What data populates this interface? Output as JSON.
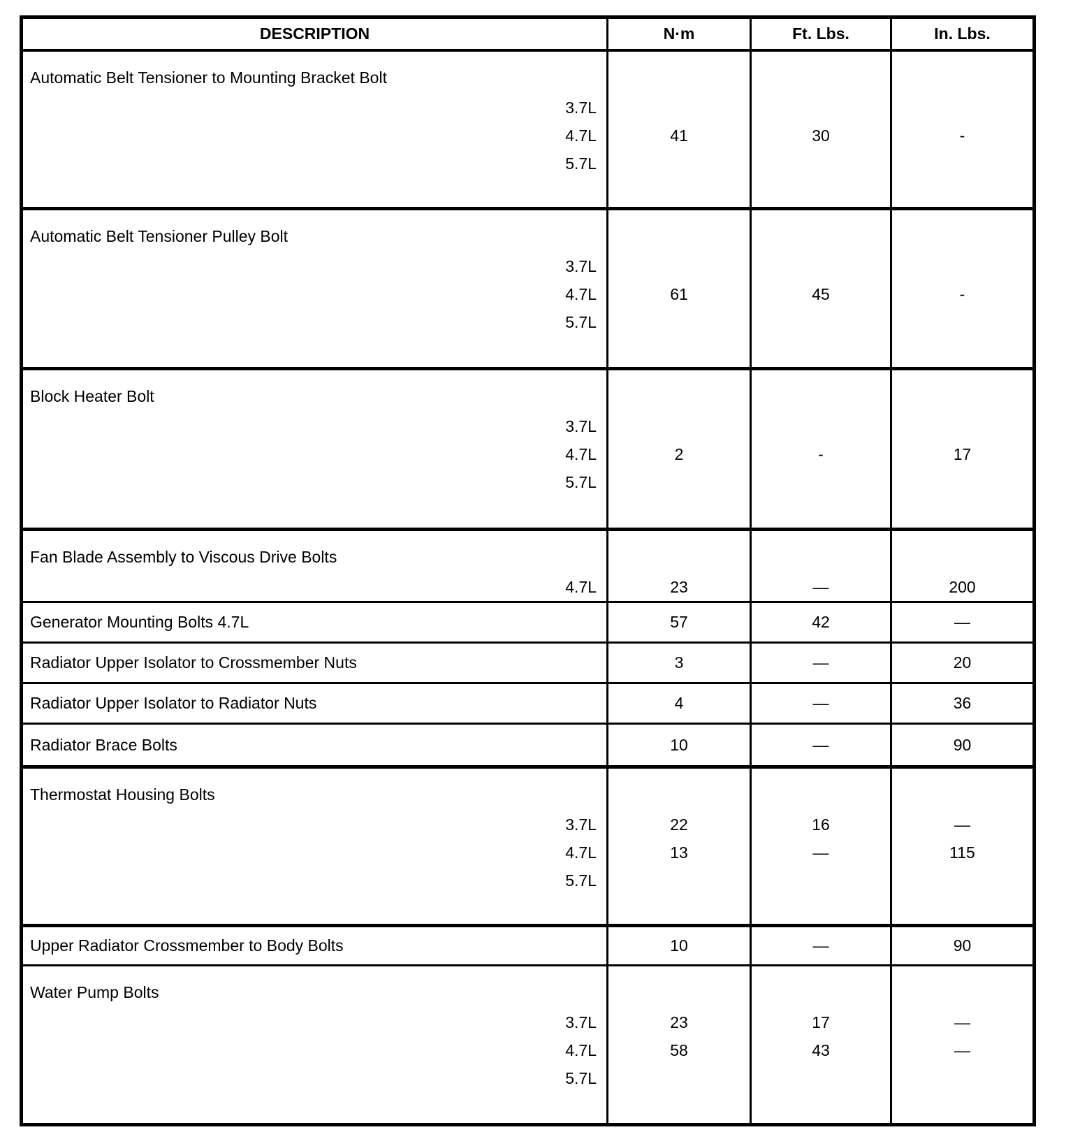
{
  "page": {
    "background_color": "#ffffff",
    "text_color": "#000000"
  },
  "table": {
    "columns": [
      "DESCRIPTION",
      "N·m",
      "Ft. Lbs.",
      "In. Lbs."
    ],
    "rows": [
      {
        "description": "Automatic Belt Tensioner to Mounting Bracket Bolt",
        "group_end": true,
        "lines": [
          {
            "engine": "3.7L",
            "nm": "",
            "ft_lbs": "",
            "in_lbs": ""
          },
          {
            "engine": "4.7L",
            "nm": "41",
            "ft_lbs": "30",
            "in_lbs": "-"
          },
          {
            "engine": "5.7L",
            "nm": "",
            "ft_lbs": "",
            "in_lbs": ""
          }
        ]
      },
      {
        "description": "Automatic Belt Tensioner Pulley Bolt",
        "group_end": true,
        "lines": [
          {
            "engine": "3.7L",
            "nm": "",
            "ft_lbs": "",
            "in_lbs": ""
          },
          {
            "engine": "4.7L",
            "nm": "61",
            "ft_lbs": "45",
            "in_lbs": "-"
          },
          {
            "engine": "5.7L",
            "nm": "",
            "ft_lbs": "",
            "in_lbs": ""
          }
        ]
      },
      {
        "description": "Block Heater Bolt",
        "group_end": true,
        "lines": [
          {
            "engine": "3.7L",
            "nm": "",
            "ft_lbs": "",
            "in_lbs": ""
          },
          {
            "engine": "4.7L",
            "nm": "2",
            "ft_lbs": "-",
            "in_lbs": "17"
          },
          {
            "engine": "5.7L",
            "nm": "",
            "ft_lbs": "",
            "in_lbs": ""
          }
        ]
      },
      {
        "description": "Fan Blade Assembly to Viscous Drive Bolts",
        "group_end": false,
        "lines": [
          {
            "engine": "4.7L",
            "nm": "23",
            "ft_lbs": "—",
            "in_lbs": "200"
          }
        ]
      },
      {
        "description": "Generator Mounting Bolts 4.7L",
        "group_end": false,
        "nm": "57",
        "ft_lbs": "42",
        "in_lbs": "—"
      },
      {
        "description": "Radiator Upper Isolator to Crossmember Nuts",
        "group_end": false,
        "nm": "3",
        "ft_lbs": "—",
        "in_lbs": "20"
      },
      {
        "description": "Radiator Upper Isolator to Radiator Nuts",
        "group_end": false,
        "nm": "4",
        "ft_lbs": "—",
        "in_lbs": "36"
      },
      {
        "description": "Radiator Brace Bolts",
        "group_end": true,
        "nm": "10",
        "ft_lbs": "—",
        "in_lbs": "90"
      },
      {
        "description": "Thermostat Housing Bolts",
        "group_end": true,
        "lines": [
          {
            "engine": "3.7L",
            "nm": "22",
            "ft_lbs": "16",
            "in_lbs": "—"
          },
          {
            "engine": "4.7L",
            "nm": "13",
            "ft_lbs": "—",
            "in_lbs": "115"
          },
          {
            "engine": "5.7L",
            "nm": "",
            "ft_lbs": "",
            "in_lbs": ""
          }
        ]
      },
      {
        "description": "Upper Radiator Crossmember to Body Bolts",
        "group_end": false,
        "nm": "10",
        "ft_lbs": "—",
        "in_lbs": "90"
      },
      {
        "description": "Water Pump Bolts",
        "group_end": false,
        "lines": [
          {
            "engine": "3.7L",
            "nm": "23",
            "ft_lbs": "17",
            "in_lbs": "—"
          },
          {
            "engine": "4.7L",
            "nm": "58",
            "ft_lbs": "43",
            "in_lbs": "—"
          },
          {
            "engine": "5.7L",
            "nm": "",
            "ft_lbs": "",
            "in_lbs": ""
          }
        ]
      }
    ]
  }
}
